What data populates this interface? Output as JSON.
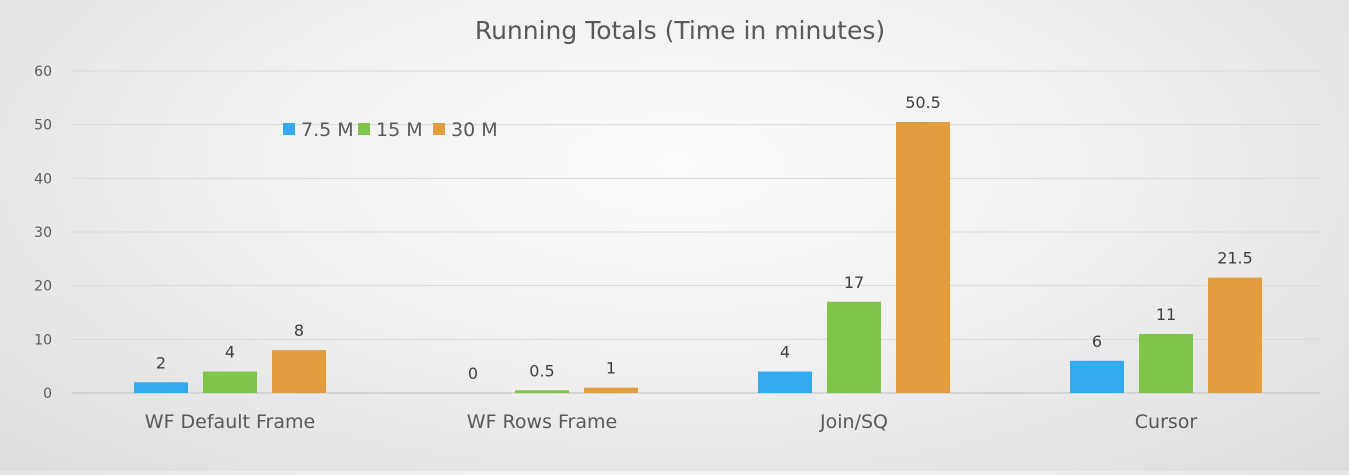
{
  "chart_data": {
    "type": "bar",
    "title": "Running Totals (Time in minutes)",
    "categories": [
      "WF Default Frame",
      "WF Rows Frame",
      "Join/SQ",
      "Cursor"
    ],
    "series": [
      {
        "name": "7.5 M",
        "color": "#33aaf0",
        "values": [
          2,
          0,
          4,
          6
        ],
        "labels": [
          "2",
          "0",
          "4",
          "6"
        ]
      },
      {
        "name": "15 M",
        "color": "#7fc44b",
        "values": [
          4,
          0.5,
          17,
          11
        ],
        "labels": [
          "4",
          "0.5",
          "17",
          "11"
        ]
      },
      {
        "name": "30 M",
        "color": "#e39d3f",
        "values": [
          8,
          1,
          50.5,
          21.5
        ],
        "labels": [
          "8",
          "1",
          "50.5",
          "21.5"
        ]
      }
    ],
    "ylim": [
      0,
      60
    ],
    "yticks": [
      0,
      10,
      20,
      30,
      40,
      50,
      60
    ],
    "xlabel": "",
    "ylabel": "",
    "grid": true,
    "legend_position": "top-left"
  }
}
